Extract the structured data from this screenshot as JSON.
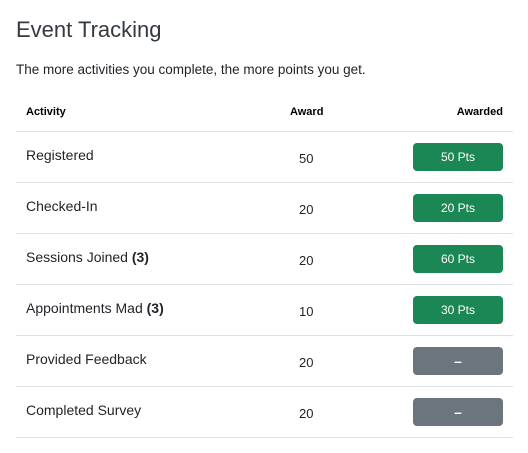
{
  "page": {
    "title": "Event Tracking",
    "subtitle": "The more activities you complete, the more points you get."
  },
  "table": {
    "headers": {
      "activity": "Activity",
      "award": "Award",
      "awarded": "Awarded"
    },
    "rows": [
      {
        "activity": "Registered",
        "count": "",
        "award": "50",
        "awarded": "50 Pts",
        "status": "awarded"
      },
      {
        "activity": "Checked-In",
        "count": "",
        "award": "20",
        "awarded": "20 Pts",
        "status": "awarded"
      },
      {
        "activity": "Sessions Joined",
        "count": "(3)",
        "award": "20",
        "awarded": "60 Pts",
        "status": "awarded"
      },
      {
        "activity": "Appointments Mad",
        "count": "(3)",
        "award": "10",
        "awarded": "30 Pts",
        "status": "awarded"
      },
      {
        "activity": "Provided Feedback",
        "count": "",
        "award": "20",
        "awarded": "–",
        "status": "pending"
      },
      {
        "activity": "Completed Survey",
        "count": "",
        "award": "20",
        "awarded": "–",
        "status": "pending"
      }
    ]
  },
  "colors": {
    "awarded_badge": "#1a8754",
    "pending_badge": "#6c757d",
    "divider": "#dee2e6"
  }
}
